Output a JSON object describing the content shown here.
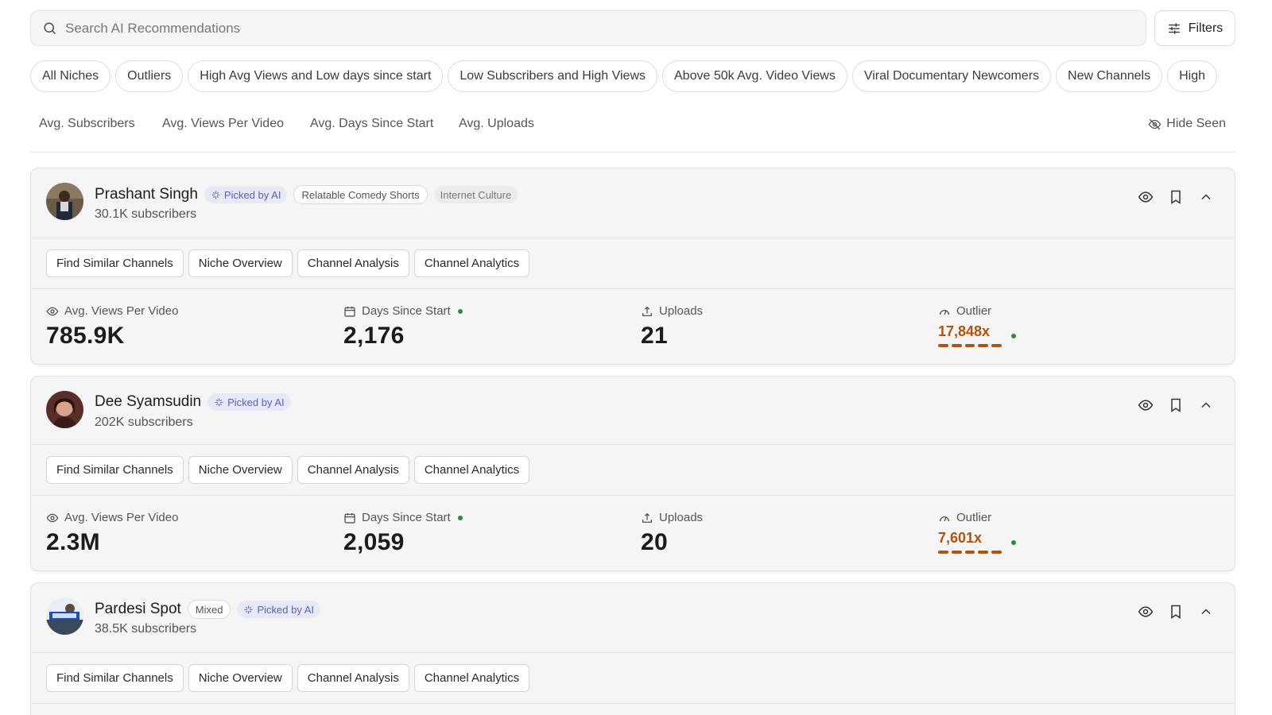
{
  "search": {
    "placeholder": "Search AI Recommendations",
    "icon": "search-icon"
  },
  "filters": {
    "label": "Filters",
    "icon": "sliders-icon"
  },
  "niche_chips": [
    "All Niches",
    "Outliers",
    "High Avg Views and Low days since start",
    "Low Subscribers and High Views",
    "Above 50k Avg. Video Views",
    "Viral Documentary Newcomers",
    "New Channels",
    "High"
  ],
  "sort_options": [
    "Avg. Subscribers",
    "Avg. Views Per Video",
    "Avg. Days Since Start",
    "Avg. Uploads"
  ],
  "hide_seen": {
    "label": "Hide Seen",
    "icon": "eye-off-icon"
  },
  "stat_labels": {
    "views": "Avg. Views Per Video",
    "days": "Days Since Start",
    "uploads": "Uploads",
    "outlier": "Outlier"
  },
  "action_buttons": [
    "Find Similar Channels",
    "Niche Overview",
    "Channel Analysis",
    "Channel Analytics"
  ],
  "accent_color": "#b45309",
  "ai_tag_color": "#5b5fc7",
  "channels": [
    {
      "name": "Prashant Singh",
      "subscribers": "30.1K subscribers",
      "tags": {
        "before": [],
        "ai": "Picked by AI",
        "after_outline": "Relatable Comedy Shorts",
        "after_grey": "Internet Culture"
      },
      "avg_views": "785.9K",
      "days_since_start": "2,176",
      "uploads": "21",
      "outlier": "17,848x"
    },
    {
      "name": "Dee Syamsudin",
      "subscribers": "202K subscribers",
      "tags": {
        "ai": "Picked by AI"
      },
      "avg_views": "2.3M",
      "days_since_start": "2,059",
      "uploads": "20",
      "outlier": "7,601x"
    },
    {
      "name": "Pardesi Spot",
      "subscribers": "38.5K subscribers",
      "tags": {
        "before_outline": "Mixed",
        "ai": "Picked by AI"
      },
      "avg_views": "",
      "days_since_start": "",
      "uploads": "",
      "outlier": ""
    }
  ]
}
